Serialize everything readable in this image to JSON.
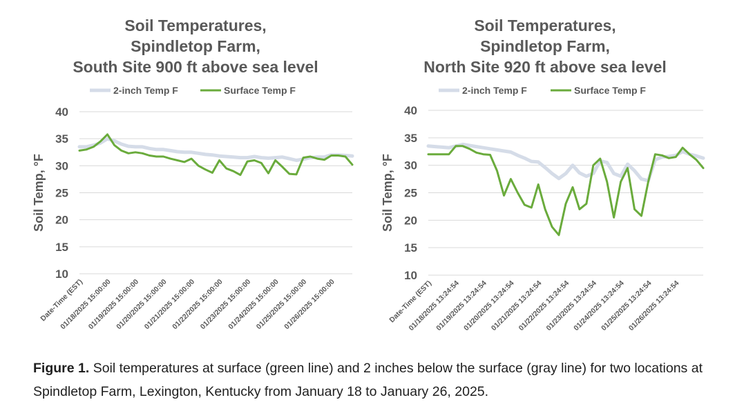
{
  "chart_data": [
    {
      "type": "line",
      "title": [
        "Soil Temperatures,",
        "Spindletop Farm,",
        "South Site 900 ft above sea level"
      ],
      "y_label": "Soil Temp, °F",
      "categories": [
        "Date-Time (EST)",
        null,
        null,
        null,
        "01/18/2025 15:00:00",
        null,
        null,
        null,
        "01/19/2025 15:00:00",
        null,
        null,
        null,
        "01/20/2025 15:00:00",
        null,
        null,
        null,
        "01/21/2025 15:00:00",
        null,
        null,
        null,
        "01/22/2025 15:00:00",
        null,
        null,
        null,
        "01/23/2025 15:00:00",
        null,
        null,
        null,
        "01/24/2025 15:00:00",
        null,
        null,
        null,
        "01/25/2025 15:00:00",
        null,
        null,
        null,
        "01/26/2025 15:00:00",
        null,
        null,
        null
      ],
      "series": [
        {
          "name": "2-inch Temp F",
          "color": "#d5dce8",
          "values": [
            33.5,
            33.5,
            33.8,
            34.2,
            35,
            34.6,
            34,
            33.6,
            33.5,
            33.5,
            33.2,
            33,
            33,
            32.8,
            32.6,
            32.5,
            32.5,
            32.3,
            32.1,
            32,
            31.8,
            31.7,
            31.6,
            31.5,
            31.5,
            31.7,
            31.5,
            31.4,
            31.5,
            31.6,
            31.3,
            31,
            31.2,
            31.5,
            31.6,
            31.6,
            32,
            32,
            31.9,
            31.8
          ]
        },
        {
          "name": "Surface Temp F",
          "color": "#6aab3c",
          "values": [
            32.8,
            33,
            33.5,
            34.5,
            35.8,
            33.8,
            32.8,
            32.3,
            32.5,
            32.3,
            31.9,
            31.7,
            31.7,
            31.3,
            31,
            30.7,
            31.3,
            30,
            29.3,
            28.7,
            31,
            29.5,
            29,
            28.3,
            30.8,
            31,
            30.5,
            28.6,
            31,
            29.8,
            28.5,
            28.4,
            31.5,
            31.7,
            31.3,
            31.1,
            31.9,
            31.9,
            31.7,
            30.2
          ]
        }
      ],
      "ylim": [
        10,
        40
      ],
      "yticks": [
        10,
        15,
        20,
        25,
        30,
        35,
        40
      ],
      "grid": true
    },
    {
      "type": "line",
      "title": [
        "Soil Temperatures,",
        "Spindletop Farm,",
        "North Site 920 ft above sea level"
      ],
      "y_label": "Soil Temp, °F",
      "categories": [
        "Date-Time (EST)",
        null,
        null,
        null,
        "01/18/2025 13:24:54",
        null,
        null,
        null,
        "01/19/2025 13:24:54",
        null,
        null,
        null,
        "01/20/2025 13:24:54",
        null,
        null,
        null,
        "01/21/2025 13:24:54",
        null,
        null,
        null,
        "01/22/2025 13:24:54",
        null,
        null,
        null,
        "01/23/2025 13:24:54",
        null,
        null,
        null,
        "01/24/2025 13:24:54",
        null,
        null,
        null,
        "01/25/2025 13:24:54",
        null,
        null,
        null,
        "01/26/2025 13:24:54",
        null,
        null,
        null,
        null
      ],
      "series": [
        {
          "name": "2-inch Temp F",
          "color": "#d5dce8",
          "values": [
            33.5,
            33.4,
            33.3,
            33.2,
            33.5,
            33.8,
            33.6,
            33.4,
            33.2,
            33,
            32.8,
            32.6,
            32.4,
            31.8,
            31.3,
            30.7,
            30.6,
            29.6,
            28.5,
            27.6,
            28.5,
            30,
            28.6,
            28,
            28.5,
            30.8,
            30.5,
            28.5,
            28,
            30.2,
            29,
            27.5,
            27.2,
            31,
            31.5,
            31.6,
            31.8,
            32.5,
            32,
            31.7,
            31.3
          ]
        },
        {
          "name": "Surface Temp F",
          "color": "#6aab3c",
          "values": [
            32,
            32,
            32,
            32,
            33.5,
            33.5,
            33,
            32.3,
            32,
            31.9,
            29,
            24.5,
            27.5,
            25,
            22.8,
            22.3,
            26.5,
            22,
            18.8,
            17.3,
            23,
            26,
            22,
            23,
            30,
            31.2,
            27,
            20.5,
            27,
            29.5,
            22,
            20.8,
            27,
            32,
            31.8,
            31.3,
            31.5,
            33.2,
            32,
            31,
            29.5
          ]
        }
      ],
      "ylim": [
        10,
        40
      ],
      "yticks": [
        10,
        15,
        20,
        25,
        30,
        35,
        40
      ],
      "grid": true
    }
  ],
  "caption": {
    "label": "Figure 1.",
    "text": "Soil temperatures at surface (green line) and 2 inches below the surface (gray line) for two locations at Spindletop Farm, Lexington, Kentucky from January 18 to January 26, 2025."
  }
}
